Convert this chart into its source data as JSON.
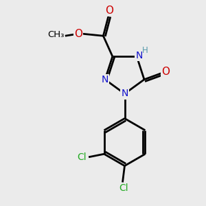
{
  "background_color": "#ebebeb",
  "atom_colors": {
    "C": "#000000",
    "N": "#1010cc",
    "O": "#cc0000",
    "H": "#5599aa",
    "Cl": "#22aa22"
  },
  "bond_color": "#000000",
  "bond_width": 2.0,
  "figsize": [
    3.0,
    3.0
  ],
  "dpi": 100,
  "xlim": [
    0,
    10
  ],
  "ylim": [
    0,
    10
  ]
}
